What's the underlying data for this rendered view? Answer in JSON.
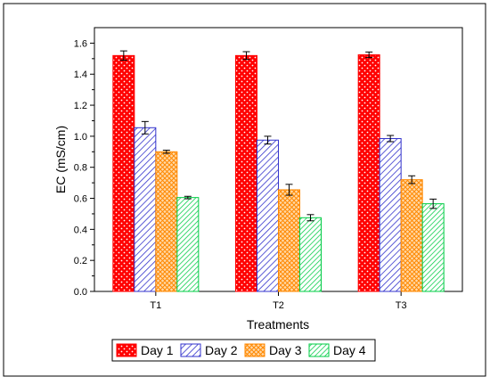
{
  "chart_data": {
    "type": "bar",
    "title": "",
    "xlabel": "Treatments",
    "ylabel": "EC (mS/cm)",
    "categories": [
      "T1",
      "T2",
      "T3"
    ],
    "ylim": [
      0,
      1.7
    ],
    "yticks": [
      "0.0",
      "0.2",
      "0.4",
      "0.6",
      "0.8",
      "1.0",
      "1.2",
      "1.4",
      "1.6"
    ],
    "grid": false,
    "legend_position": "bottom",
    "series": [
      {
        "name": "Day 1",
        "values": [
          1.52,
          1.52,
          1.525
        ],
        "errors": [
          0.03,
          0.025,
          0.018
        ],
        "color": "#ff0000",
        "pattern": "dots"
      },
      {
        "name": "Day 2",
        "values": [
          1.055,
          0.975,
          0.985
        ],
        "errors": [
          0.04,
          0.025,
          0.02
        ],
        "color": "#3333cc",
        "pattern": "diagonal"
      },
      {
        "name": "Day 3",
        "values": [
          0.9,
          0.655,
          0.72
        ],
        "errors": [
          0.01,
          0.035,
          0.025
        ],
        "color": "#ff8800",
        "pattern": "crosshatch"
      },
      {
        "name": "Day 4",
        "values": [
          0.605,
          0.475,
          0.565
        ],
        "errors": [
          0.008,
          0.02,
          0.03
        ],
        "color": "#00cc44",
        "pattern": "diagonal-light"
      }
    ]
  }
}
